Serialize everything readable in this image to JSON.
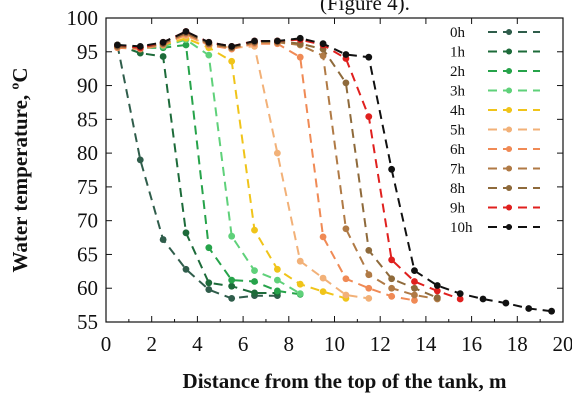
{
  "top_caption_fragment": "(Figure 4).",
  "chart_data": {
    "type": "line",
    "title": "",
    "xlabel": "Distance from the top of the tank, m",
    "ylabel": "Water temperature, ºC",
    "xlim": [
      0,
      20
    ],
    "ylim": [
      55,
      100
    ],
    "xticks": [
      0,
      2,
      4,
      6,
      8,
      10,
      12,
      14,
      16,
      18,
      20
    ],
    "yticks": [
      55,
      60,
      65,
      70,
      75,
      80,
      85,
      90,
      95,
      100
    ],
    "grid": false,
    "legend_position": "top-right",
    "series": [
      {
        "name": "0h",
        "color": "#2f5d4b",
        "x": [
          0.5,
          1.5,
          2.5,
          3.5,
          4.5,
          5.5,
          6.5,
          7.5
        ],
        "y": [
          96.0,
          79.0,
          67.2,
          62.8,
          59.8,
          58.5,
          58.9,
          58.9
        ]
      },
      {
        "name": "1h",
        "color": "#1d6b3a",
        "x": [
          0.5,
          1.5,
          2.5,
          3.5,
          4.5,
          5.5,
          6.5,
          7.5
        ],
        "y": [
          96.0,
          94.8,
          94.3,
          68.2,
          60.8,
          60.3,
          59.3,
          59.3
        ]
      },
      {
        "name": "2h",
        "color": "#26a34a",
        "x": [
          0.5,
          1.5,
          2.5,
          3.5,
          4.5,
          5.5,
          6.5,
          7.5,
          8.5
        ],
        "y": [
          96.0,
          95.6,
          95.6,
          96.0,
          66.0,
          61.2,
          61.0,
          59.6,
          59.1
        ]
      },
      {
        "name": "3h",
        "color": "#5fd17a",
        "x": [
          0.5,
          1.5,
          2.5,
          3.5,
          4.5,
          5.5,
          6.5,
          7.5,
          8.5
        ],
        "y": [
          96.0,
          95.6,
          95.8,
          96.8,
          94.5,
          67.7,
          62.6,
          61.2,
          59.2
        ]
      },
      {
        "name": "4h",
        "color": "#f0c419",
        "x": [
          0.5,
          1.5,
          2.5,
          3.5,
          4.5,
          5.5,
          6.5,
          7.5,
          8.5,
          9.5,
          10.5
        ],
        "y": [
          95.8,
          95.6,
          96.0,
          97.0,
          95.6,
          93.6,
          68.6,
          62.8,
          60.6,
          59.5,
          58.5
        ]
      },
      {
        "name": "5h",
        "color": "#f2b178",
        "x": [
          0.5,
          1.5,
          2.5,
          3.5,
          4.5,
          5.5,
          6.5,
          7.5,
          8.5,
          9.5,
          10.5,
          11.5
        ],
        "y": [
          95.8,
          95.6,
          96.2,
          97.4,
          96.0,
          95.6,
          95.8,
          80.0,
          64.0,
          61.5,
          59.0,
          58.5
        ]
      },
      {
        "name": "6h",
        "color": "#f08a55",
        "x": [
          0.5,
          1.5,
          2.5,
          3.5,
          4.5,
          5.5,
          6.5,
          7.5,
          8.5,
          9.5,
          10.5,
          11.5,
          12.5,
          13.5
        ],
        "y": [
          95.6,
          95.4,
          96.0,
          97.6,
          96.0,
          95.4,
          96.2,
          96.2,
          94.2,
          67.6,
          61.4,
          60.0,
          58.8,
          58.2
        ]
      },
      {
        "name": "7h",
        "color": "#b07a45",
        "x": [
          0.5,
          1.5,
          2.5,
          3.5,
          4.5,
          5.5,
          6.5,
          7.5,
          8.5,
          9.5,
          10.5,
          11.5,
          12.5,
          13.5,
          14.5
        ],
        "y": [
          95.8,
          95.6,
          96.2,
          97.8,
          96.2,
          95.6,
          96.4,
          96.4,
          96.0,
          94.4,
          68.8,
          62.0,
          60.0,
          59.0,
          58.4
        ]
      },
      {
        "name": "8h",
        "color": "#8e6a3b",
        "x": [
          0.5,
          1.5,
          2.5,
          3.5,
          4.5,
          5.5,
          6.5,
          7.5,
          8.5,
          9.5,
          10.5,
          11.5,
          12.5,
          13.5,
          14.5
        ],
        "y": [
          95.8,
          95.6,
          96.2,
          97.8,
          96.2,
          95.6,
          96.4,
          96.6,
          96.2,
          95.4,
          90.4,
          65.6,
          61.4,
          60.0,
          58.6
        ]
      },
      {
        "name": "9h",
        "color": "#e0201e",
        "x": [
          0.5,
          1.5,
          2.5,
          3.5,
          4.5,
          5.5,
          6.5,
          7.5,
          8.5,
          9.5,
          10.5,
          11.5,
          12.5,
          13.5,
          14.5,
          15.5
        ],
        "y": [
          96.0,
          95.6,
          96.4,
          98.0,
          96.4,
          95.8,
          96.6,
          96.6,
          96.8,
          96.0,
          94.0,
          85.4,
          64.2,
          61.0,
          59.6,
          58.4
        ]
      },
      {
        "name": "10h",
        "color": "#111111",
        "x": [
          0.5,
          1.5,
          2.5,
          3.5,
          4.5,
          5.5,
          6.5,
          7.5,
          8.5,
          9.5,
          10.5,
          11.5,
          12.5,
          13.5,
          14.5,
          15.5,
          16.5,
          17.5,
          18.5,
          19.5
        ],
        "y": [
          96.0,
          95.8,
          96.4,
          98.0,
          96.4,
          95.8,
          96.6,
          96.6,
          97.0,
          96.2,
          94.6,
          94.2,
          77.6,
          62.6,
          60.4,
          59.2,
          58.4,
          57.8,
          57.0,
          56.6
        ]
      }
    ]
  }
}
